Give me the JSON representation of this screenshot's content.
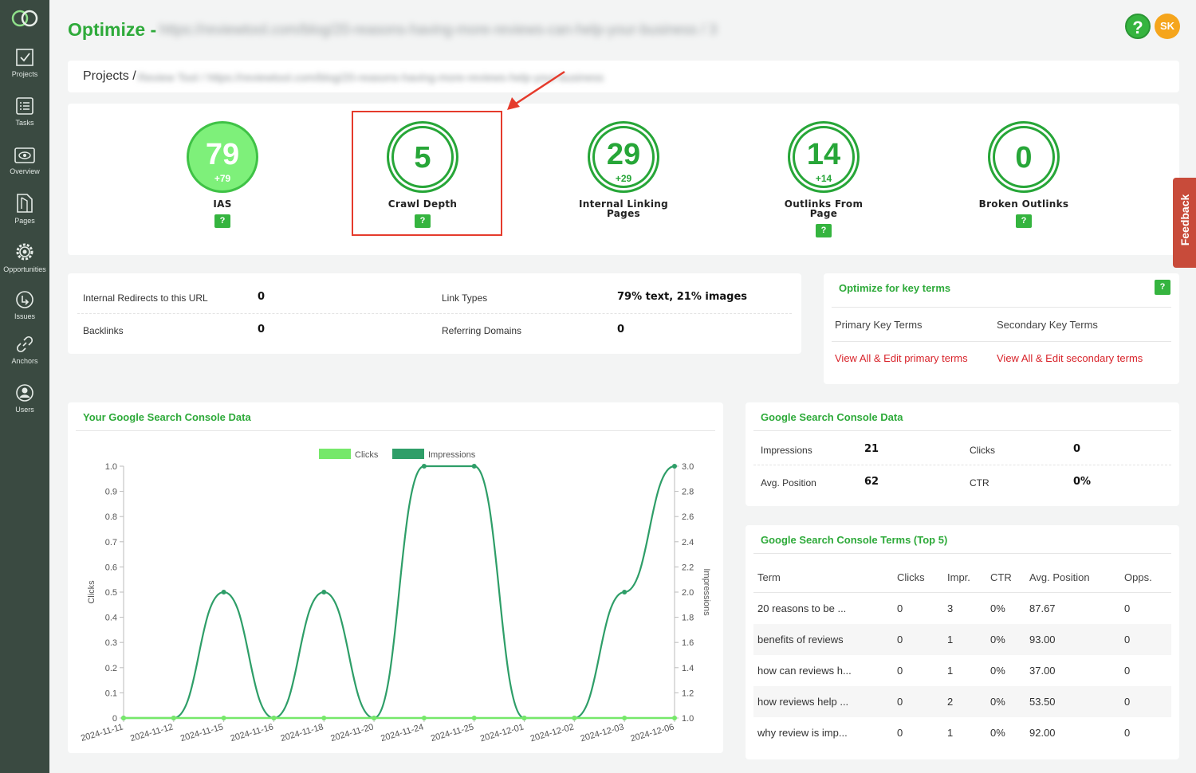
{
  "header": {
    "title": "Optimize -",
    "url": "https://reviewtool.com/blog/20-reasons-having-more-reviews-can-help-your-business / 3",
    "help_label": "?",
    "avatar_initials": "SK"
  },
  "sidebar": {
    "items": [
      {
        "label": "Projects",
        "icon": "projects-icon"
      },
      {
        "label": "Tasks",
        "icon": "tasks-icon"
      },
      {
        "label": "Overview",
        "icon": "overview-icon"
      },
      {
        "label": "Pages",
        "icon": "pages-icon"
      },
      {
        "label": "Opportunities",
        "icon": "gear-icon"
      },
      {
        "label": "Issues",
        "icon": "issues-icon"
      },
      {
        "label": "Anchors",
        "icon": "link-icon"
      },
      {
        "label": "Users",
        "icon": "user-icon"
      }
    ]
  },
  "breadcrumb": {
    "root": "Projects /",
    "rest": "Review Tool / https://reviewtool.com/blog/20-reasons-having-more-reviews-help-your-business"
  },
  "scores": [
    {
      "value": "79",
      "delta": "+79",
      "label_line1": "IAS",
      "label_line2": "",
      "badge": "?"
    },
    {
      "value": "5",
      "delta": "",
      "label_line1": "Crawl Depth",
      "label_line2": "",
      "badge": "?"
    },
    {
      "value": "29",
      "delta": "+29",
      "label_line1": "Internal Linking",
      "label_line2": "Pages",
      "badge": ""
    },
    {
      "value": "14",
      "delta": "+14",
      "label_line1": "Outlinks From",
      "label_line2": "Page",
      "badge": "?"
    },
    {
      "value": "0",
      "delta": "",
      "label_line1": "Broken Outlinks",
      "label_line2": "",
      "badge": "?"
    }
  ],
  "info": {
    "internal_redirects_label": "Internal Redirects to this URL",
    "internal_redirects_value": "0",
    "link_types_label": "Link Types",
    "link_types_value": "79% text, 21% images",
    "backlinks_label": "Backlinks",
    "backlinks_value": "0",
    "referring_domains_label": "Referring Domains",
    "referring_domains_value": "0"
  },
  "key_terms": {
    "title": "Optimize for key terms",
    "badge": "?",
    "primary_label": "Primary Key Terms",
    "secondary_label": "Secondary Key Terms",
    "primary_link": "View All & Edit primary terms",
    "secondary_link": "View All & Edit secondary terms"
  },
  "chart_card": {
    "title": "Your Google Search Console Data"
  },
  "chart_data": {
    "type": "line",
    "x": [
      "2024-11-11",
      "2024-11-12",
      "2024-11-15",
      "2024-11-16",
      "2024-11-18",
      "2024-11-20",
      "2024-11-24",
      "2024-11-25",
      "2024-12-01",
      "2024-12-02",
      "2024-12-03",
      "2024-12-06"
    ],
    "series": [
      {
        "name": "Clicks",
        "axis": "left",
        "values": [
          0,
          0,
          0,
          0,
          0,
          0,
          0,
          0,
          0,
          0,
          0,
          0
        ],
        "color": "#76e86a"
      },
      {
        "name": "Impressions",
        "axis": "right",
        "values": [
          1,
          1,
          2,
          1,
          2,
          1,
          3,
          3,
          1,
          1,
          2,
          3
        ],
        "color": "#2e9e68"
      }
    ],
    "ylabel": "Clicks",
    "y2label": "Impressions",
    "ylim": [
      0,
      1.0
    ],
    "y2lim": [
      1.0,
      3.0
    ],
    "yticks": [
      "0",
      "0.1",
      "0.2",
      "0.3",
      "0.4",
      "0.5",
      "0.6",
      "0.7",
      "0.8",
      "0.9",
      "1.0"
    ],
    "y2ticks": [
      "1.0",
      "1.2",
      "1.4",
      "1.6",
      "1.8",
      "2.0",
      "2.2",
      "2.4",
      "2.6",
      "2.8",
      "3.0"
    ],
    "legend": "top-center",
    "grid": false
  },
  "gsc": {
    "title": "Google Search Console Data",
    "impressions_label": "Impressions",
    "impressions_value": "21",
    "clicks_label": "Clicks",
    "clicks_value": "0",
    "avg_position_label": "Avg. Position",
    "avg_position_value": "62",
    "ctr_label": "CTR",
    "ctr_value": "0%"
  },
  "terms": {
    "title": "Google Search Console Terms (Top 5)",
    "columns": [
      "Term",
      "Clicks",
      "Impr.",
      "CTR",
      "Avg. Position",
      "Opps."
    ],
    "rows": [
      [
        "20 reasons to be ...",
        "0",
        "3",
        "0%",
        "87.67",
        "0"
      ],
      [
        "benefits of reviews",
        "0",
        "1",
        "0%",
        "93.00",
        "0"
      ],
      [
        "how can reviews h...",
        "0",
        "1",
        "0%",
        "37.00",
        "0"
      ],
      [
        "how reviews help ...",
        "0",
        "2",
        "0%",
        "53.50",
        "0"
      ],
      [
        "why review is imp...",
        "0",
        "1",
        "0%",
        "92.00",
        "0"
      ]
    ]
  },
  "feedback": {
    "label": "Feedback"
  },
  "colors": {
    "accent": "#2eaa3a",
    "sidebar": "#3a4a41",
    "link": "#d8232a",
    "highlight": "#e53b2c"
  }
}
